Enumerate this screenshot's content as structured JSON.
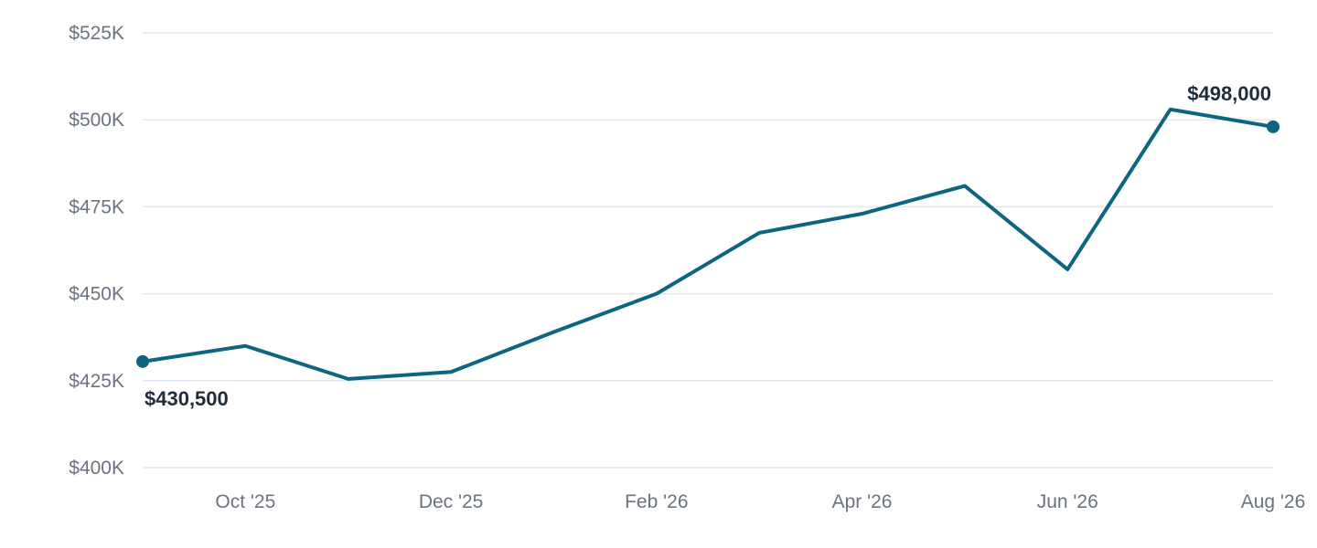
{
  "chart_data": {
    "type": "line",
    "title": "",
    "xlabel": "",
    "ylabel": "",
    "grid": true,
    "legend": "none",
    "ylim": [
      400000,
      525000
    ],
    "y_ticks": [
      {
        "value": 400000,
        "label": "$400K"
      },
      {
        "value": 425000,
        "label": "$425K"
      },
      {
        "value": 450000,
        "label": "$450K"
      },
      {
        "value": 475000,
        "label": "$475K"
      },
      {
        "value": 500000,
        "label": "$500K"
      },
      {
        "value": 525000,
        "label": "$525K"
      }
    ],
    "x": [
      "2025-09",
      "2025-10",
      "2025-11",
      "2025-12",
      "2026-01",
      "2026-02",
      "2026-03",
      "2026-04",
      "2026-05",
      "2026-06",
      "2026-07",
      "2026-08"
    ],
    "x_ticks": [
      {
        "x": "2025-10",
        "label": "Oct '25"
      },
      {
        "x": "2025-12",
        "label": "Dec '25"
      },
      {
        "x": "2026-02",
        "label": "Feb '26"
      },
      {
        "x": "2026-04",
        "label": "Apr '26"
      },
      {
        "x": "2026-06",
        "label": "Jun '26"
      },
      {
        "x": "2026-08",
        "label": "Aug '26"
      }
    ],
    "series": [
      {
        "values": [
          430500,
          435000,
          425500,
          427500,
          439000,
          450000,
          467500,
          473000,
          481000,
          457000,
          503000,
          498000
        ]
      }
    ],
    "annotations": [
      {
        "x": "2025-09",
        "label": "$430,500"
      },
      {
        "x": "2026-08",
        "label": "$498,000"
      }
    ],
    "colors": {
      "line": "#0e6580",
      "grid": "#e3e7ee",
      "tick_text": "#6b7280",
      "label_text": "#1f2d3a"
    }
  }
}
